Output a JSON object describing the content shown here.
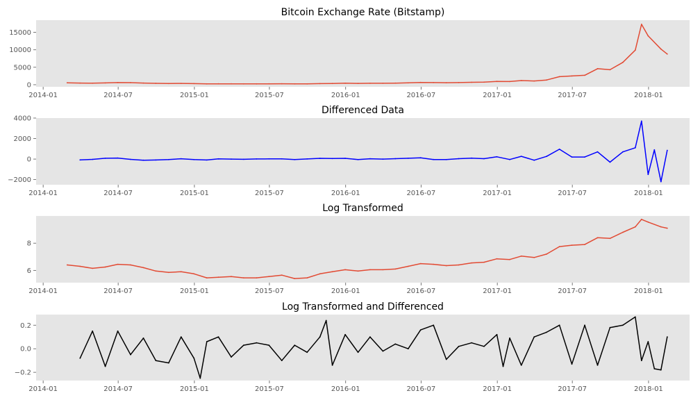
{
  "chart_data": [
    {
      "type": "line",
      "title": "Bitcoin Exchange Rate (Bitstamp)",
      "xlabel": "",
      "ylabel": "",
      "color": "#e24a33",
      "ylim": [
        -600,
        18500
      ],
      "yticks": [
        0,
        5000,
        10000,
        15000
      ],
      "ytick_labels": [
        "0",
        "5000",
        "10000",
        "15000"
      ],
      "grid": false,
      "series": [
        {
          "x": [
            "2014-02-28",
            "2014-03-31",
            "2014-04-30",
            "2014-05-31",
            "2014-06-30",
            "2014-07-31",
            "2014-08-31",
            "2014-09-30",
            "2014-10-31",
            "2014-11-30",
            "2014-12-31",
            "2015-01-31",
            "2015-02-28",
            "2015-03-31",
            "2015-04-30",
            "2015-05-31",
            "2015-06-30",
            "2015-07-31",
            "2015-08-31",
            "2015-09-30",
            "2015-10-31",
            "2015-11-30",
            "2015-12-31",
            "2016-01-31",
            "2016-02-29",
            "2016-03-31",
            "2016-04-30",
            "2016-05-31",
            "2016-06-30",
            "2016-07-31",
            "2016-08-31",
            "2016-09-30",
            "2016-10-31",
            "2016-11-30",
            "2016-12-31",
            "2017-01-31",
            "2017-02-28",
            "2017-03-31",
            "2017-04-30",
            "2017-05-31",
            "2017-06-30",
            "2017-07-31",
            "2017-08-31",
            "2017-09-30",
            "2017-10-31",
            "2017-11-30",
            "2017-12-15",
            "2017-12-31",
            "2018-01-31",
            "2018-02-15"
          ],
          "y": [
            550,
            470,
            440,
            520,
            620,
            590,
            480,
            390,
            340,
            370,
            320,
            230,
            250,
            250,
            230,
            240,
            260,
            280,
            230,
            240,
            310,
            360,
            430,
            380,
            410,
            410,
            450,
            530,
            660,
            620,
            570,
            610,
            700,
            740,
            960,
            920,
            1190,
            1080,
            1340,
            2300,
            2500,
            2700,
            4600,
            4300,
            6400,
            9900,
            17300,
            14000,
            10200,
            8800
          ]
        }
      ]
    },
    {
      "type": "line",
      "title": "Differenced Data",
      "xlabel": "",
      "ylabel": "",
      "color": "#0000ff",
      "ylim": [
        -2500,
        4000
      ],
      "yticks": [
        -2000,
        0,
        2000,
        4000
      ],
      "ytick_labels": [
        "−2000",
        "0",
        "2000",
        "4000"
      ],
      "grid": false,
      "series": [
        {
          "x": [
            "2014-03-31",
            "2014-04-30",
            "2014-05-31",
            "2014-06-30",
            "2014-07-31",
            "2014-08-31",
            "2014-09-30",
            "2014-10-31",
            "2014-11-30",
            "2014-12-31",
            "2015-01-31",
            "2015-02-28",
            "2015-03-31",
            "2015-04-30",
            "2015-05-31",
            "2015-06-30",
            "2015-07-31",
            "2015-08-31",
            "2015-09-30",
            "2015-10-31",
            "2015-11-30",
            "2015-12-31",
            "2016-01-31",
            "2016-02-29",
            "2016-03-31",
            "2016-04-30",
            "2016-05-31",
            "2016-06-30",
            "2016-07-31",
            "2016-08-31",
            "2016-09-30",
            "2016-10-31",
            "2016-11-30",
            "2016-12-31",
            "2017-01-31",
            "2017-02-28",
            "2017-03-31",
            "2017-04-30",
            "2017-05-31",
            "2017-06-30",
            "2017-07-31",
            "2017-08-31",
            "2017-09-30",
            "2017-10-31",
            "2017-11-30",
            "2017-12-15",
            "2017-12-31",
            "2018-01-15",
            "2018-01-31",
            "2018-02-15"
          ],
          "y": [
            -80,
            -30,
            80,
            100,
            -30,
            -110,
            -90,
            -50,
            30,
            -50,
            -90,
            20,
            0,
            -20,
            10,
            20,
            20,
            -50,
            10,
            70,
            50,
            70,
            -50,
            30,
            0,
            40,
            80,
            130,
            -40,
            -50,
            40,
            90,
            40,
            220,
            -40,
            270,
            -110,
            260,
            960,
            200,
            200,
            700,
            -300,
            700,
            1100,
            3700,
            -1500,
            900,
            -2200,
            850
          ]
        }
      ]
    },
    {
      "type": "line",
      "title": "Log Transformed",
      "xlabel": "",
      "ylabel": "",
      "color": "#e24a33",
      "ylim": [
        5.1,
        10.0
      ],
      "yticks": [
        6,
        8
      ],
      "ytick_labels": [
        "6",
        "8"
      ],
      "grid": false,
      "series": [
        {
          "x": [
            "2014-02-28",
            "2014-03-31",
            "2014-04-30",
            "2014-05-31",
            "2014-06-30",
            "2014-07-31",
            "2014-08-31",
            "2014-09-30",
            "2014-10-31",
            "2014-11-30",
            "2014-12-31",
            "2015-01-31",
            "2015-02-28",
            "2015-03-31",
            "2015-04-30",
            "2015-05-31",
            "2015-06-30",
            "2015-07-31",
            "2015-08-31",
            "2015-09-30",
            "2015-10-31",
            "2015-11-30",
            "2015-12-31",
            "2016-01-31",
            "2016-02-29",
            "2016-03-31",
            "2016-04-30",
            "2016-05-31",
            "2016-06-30",
            "2016-07-31",
            "2016-08-31",
            "2016-09-30",
            "2016-10-31",
            "2016-11-30",
            "2016-12-31",
            "2017-01-31",
            "2017-02-28",
            "2017-03-31",
            "2017-04-30",
            "2017-05-31",
            "2017-06-30",
            "2017-07-31",
            "2017-08-31",
            "2017-09-30",
            "2017-10-31",
            "2017-11-30",
            "2017-12-15",
            "2017-12-31",
            "2018-01-31",
            "2018-02-15"
          ],
          "y": [
            6.4,
            6.3,
            6.15,
            6.25,
            6.45,
            6.4,
            6.2,
            5.95,
            5.85,
            5.9,
            5.75,
            5.45,
            5.5,
            5.55,
            5.45,
            5.45,
            5.55,
            5.65,
            5.4,
            5.45,
            5.75,
            5.9,
            6.05,
            5.95,
            6.05,
            6.05,
            6.1,
            6.3,
            6.5,
            6.45,
            6.35,
            6.4,
            6.55,
            6.6,
            6.85,
            6.8,
            7.05,
            6.95,
            7.2,
            7.75,
            7.85,
            7.9,
            8.4,
            8.35,
            8.8,
            9.2,
            9.75,
            9.55,
            9.2,
            9.1
          ]
        }
      ]
    },
    {
      "type": "line",
      "title": "Log Transformed and Differenced",
      "xlabel": "",
      "ylabel": "",
      "color": "#000000",
      "ylim": [
        -0.27,
        0.29
      ],
      "yticks": [
        -0.2,
        0.0,
        0.2
      ],
      "ytick_labels": [
        "−0.2",
        "0.0",
        "0.2"
      ],
      "grid": false,
      "series": [
        {
          "x": [
            "2014-03-31",
            "2014-04-30",
            "2014-05-31",
            "2014-06-30",
            "2014-07-31",
            "2014-08-31",
            "2014-09-30",
            "2014-10-31",
            "2014-11-30",
            "2014-12-31",
            "2015-01-15",
            "2015-01-31",
            "2015-02-28",
            "2015-03-31",
            "2015-04-30",
            "2015-05-31",
            "2015-06-30",
            "2015-07-31",
            "2015-08-31",
            "2015-09-30",
            "2015-10-31",
            "2015-11-15",
            "2015-11-30",
            "2015-12-31",
            "2016-01-31",
            "2016-02-29",
            "2016-03-31",
            "2016-04-30",
            "2016-05-31",
            "2016-06-30",
            "2016-07-31",
            "2016-08-31",
            "2016-09-30",
            "2016-10-31",
            "2016-11-30",
            "2016-12-31",
            "2017-01-15",
            "2017-01-31",
            "2017-02-28",
            "2017-03-31",
            "2017-04-30",
            "2017-05-31",
            "2017-06-30",
            "2017-07-31",
            "2017-08-31",
            "2017-09-30",
            "2017-10-31",
            "2017-11-30",
            "2017-12-15",
            "2017-12-31",
            "2018-01-15",
            "2018-01-31",
            "2018-02-15"
          ],
          "y": [
            -0.08,
            0.15,
            -0.15,
            0.15,
            -0.05,
            0.09,
            -0.1,
            -0.12,
            0.1,
            -0.08,
            -0.25,
            0.06,
            0.1,
            -0.07,
            0.03,
            0.05,
            0.03,
            -0.1,
            0.03,
            -0.03,
            0.1,
            0.24,
            -0.14,
            0.12,
            -0.03,
            0.1,
            -0.02,
            0.04,
            0.0,
            0.16,
            0.2,
            -0.09,
            0.02,
            0.05,
            0.02,
            0.12,
            -0.15,
            0.09,
            -0.14,
            0.1,
            0.14,
            0.2,
            -0.13,
            0.2,
            -0.14,
            0.18,
            0.2,
            0.27,
            -0.1,
            0.06,
            -0.17,
            -0.18,
            0.1
          ]
        }
      ]
    }
  ],
  "x_axis": {
    "range": [
      "2013-12-15",
      "2018-04-10"
    ],
    "ticks": [
      "2014-01-01",
      "2014-07-01",
      "2015-01-01",
      "2015-07-01",
      "2016-01-01",
      "2016-07-01",
      "2017-01-01",
      "2017-07-01",
      "2018-01-01"
    ],
    "tick_labels": [
      "2014-01",
      "2014-07",
      "2015-01",
      "2015-07",
      "2016-01",
      "2016-07",
      "2017-01",
      "2017-07",
      "2018-01"
    ]
  },
  "style": {
    "plot_background": "#e5e5e5"
  }
}
